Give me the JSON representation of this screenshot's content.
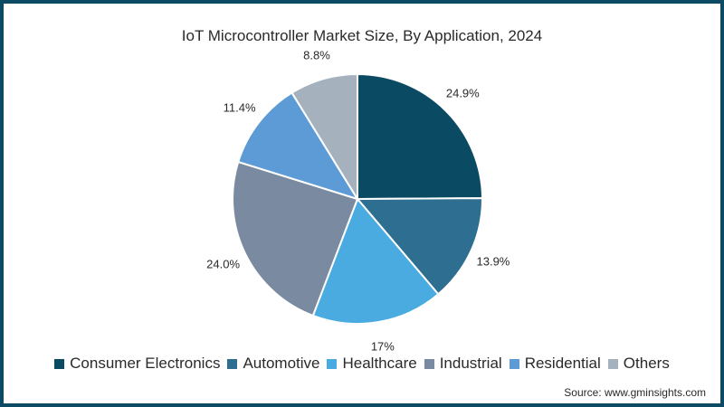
{
  "title": "IoT Microcontroller Market Size, By Application, 2024",
  "source": "Source: www.gminsights.com",
  "colors": {
    "border": "#0d4a63"
  },
  "chart_data": {
    "type": "pie",
    "title": "IoT Microcontroller Market Size, By Application, 2024",
    "start_angle": "12 o'clock, clockwise",
    "legend_position": "bottom",
    "categories": [
      "Consumer Electronics",
      "Automotive",
      "Healthcare",
      "Industrial",
      "Residential",
      "Others"
    ],
    "values": [
      24.9,
      13.9,
      17,
      24.0,
      11.4,
      8.8
    ],
    "labels": [
      "24.9%",
      "13.9%",
      "17%",
      "24.0%",
      "11.4%",
      "8.8%"
    ],
    "colors": [
      "#0b4a63",
      "#2e6e90",
      "#4aabe0",
      "#7a8aa0",
      "#5c9bd5",
      "#a5b1bc"
    ]
  },
  "legend": {
    "items": [
      {
        "label": "Consumer Electronics",
        "color": "#0b4a63"
      },
      {
        "label": "Automotive",
        "color": "#2e6e90"
      },
      {
        "label": "Healthcare",
        "color": "#4aabe0"
      },
      {
        "label": "Industrial",
        "color": "#7a8aa0"
      },
      {
        "label": "Residential",
        "color": "#5c9bd5"
      },
      {
        "label": "Others",
        "color": "#a5b1bc"
      }
    ]
  }
}
